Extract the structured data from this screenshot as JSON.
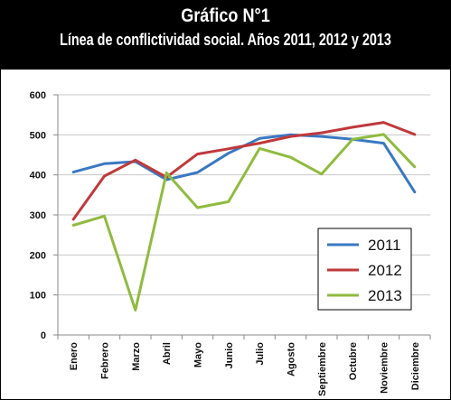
{
  "header": {
    "title": "Gráfico N°1",
    "subtitle": "Línea de conflictividad social. Años 2011, 2012 y 2013"
  },
  "chart_data": {
    "type": "line",
    "title": "Gráfico N°1",
    "subtitle": "Línea de conflictividad social. Años 2011, 2012 y 2013",
    "xlabel": "",
    "ylabel": "",
    "ylim": [
      0,
      600
    ],
    "yticks": [
      0,
      100,
      200,
      300,
      400,
      500,
      600
    ],
    "grid": true,
    "legend_position": "bottom-right",
    "categories": [
      "Enero",
      "Febrero",
      "Marzo",
      "Abril",
      "Mayo",
      "Junio",
      "Julio",
      "Agosto",
      "Septiembre",
      "Octubre",
      "Noviembre",
      "Diciembre"
    ],
    "series": [
      {
        "name": "2011",
        "color": "#3a78c2",
        "values": [
          407,
          428,
          433,
          388,
          406,
          454,
          491,
          500,
          496,
          489,
          479,
          357
        ]
      },
      {
        "name": "2012",
        "color": "#c0393b",
        "values": [
          289,
          397,
          437,
          394,
          452,
          465,
          479,
          496,
          505,
          519,
          531,
          501
        ]
      },
      {
        "name": "2013",
        "color": "#8fbb3f",
        "values": [
          274,
          297,
          62,
          405,
          318,
          333,
          466,
          444,
          402,
          489,
          501,
          420
        ]
      }
    ]
  }
}
